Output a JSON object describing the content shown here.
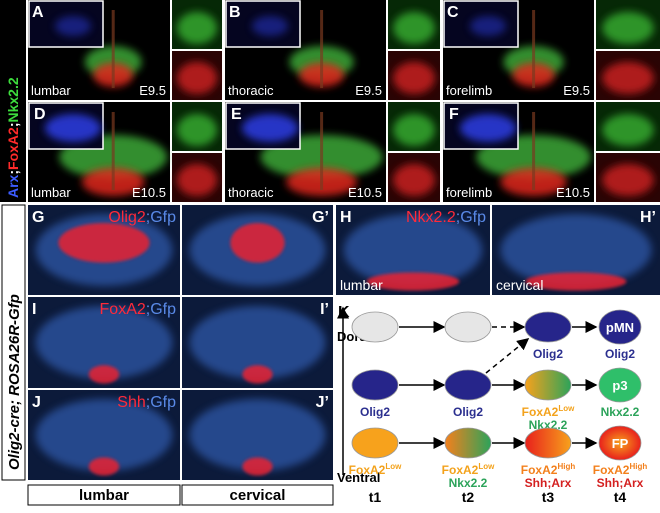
{
  "top_label": [
    {
      "text": "Arx",
      "color": "#3d5cff"
    },
    {
      "text": ";",
      "color": "#ffffff"
    },
    {
      "text": "FoxA2",
      "color": "#ff2a2a"
    },
    {
      "text": ";",
      "color": "#ffffff"
    },
    {
      "text": "Nkx2.2",
      "color": "#3ddc3d"
    }
  ],
  "top_panels": [
    {
      "letter": "A",
      "region": "lumbar",
      "stage": "E9.5"
    },
    {
      "letter": "B",
      "region": "thoracic",
      "stage": "E9.5"
    },
    {
      "letter": "C",
      "region": "forelimb",
      "stage": "E9.5"
    },
    {
      "letter": "D",
      "region": "lumbar",
      "stage": "E10.5"
    },
    {
      "letter": "E",
      "region": "thoracic",
      "stage": "E10.5"
    },
    {
      "letter": "F",
      "region": "forelimb",
      "stage": "E10.5"
    }
  ],
  "side_label": "Olig2-cre; ROSA26R-Gfp",
  "lower_panels": [
    {
      "letter": "G",
      "prime": "G’",
      "marker": "Olig2",
      "reporter": ";Gfp"
    },
    {
      "letter": "H",
      "prime": "H’",
      "marker": "Nkx2.2",
      "reporter": ";Gfp",
      "regions": [
        "lumbar",
        "cervical"
      ]
    },
    {
      "letter": "I",
      "prime": "I’",
      "marker": "FoxA2",
      "reporter": ";Gfp"
    },
    {
      "letter": "J",
      "prime": "J’",
      "marker": "Shh",
      "reporter": ";Gfp"
    }
  ],
  "bottom_labels": [
    "lumbar",
    "cervical"
  ],
  "diagram": {
    "letter": "K",
    "dorsal": "Dorsal",
    "ventral": "Ventral",
    "times": [
      "t1",
      "t2",
      "t3",
      "t4"
    ],
    "rows": [
      [
        {},
        {},
        {
          "caption": [
            {
              "text": "Olig2",
              "color": "#2b2f8f"
            }
          ]
        },
        {
          "text": "pMN",
          "caption": [
            {
              "text": "Olig2",
              "color": "#2b2f8f"
            }
          ]
        }
      ],
      [
        {
          "caption": [
            {
              "text": "Olig2",
              "color": "#2b2f8f"
            }
          ]
        },
        {
          "caption": [
            {
              "text": "Olig2",
              "color": "#2b2f8f"
            }
          ]
        },
        {
          "caption": [
            {
              "text": "FoxA2",
              "sup": "Low",
              "color": "#f3a21c"
            },
            {
              "text": "Nkx2.2",
              "color": "#2ca35a"
            }
          ]
        },
        {
          "text": "p3",
          "caption": [
            {
              "text": "Nkx2.2",
              "color": "#2ca35a"
            }
          ]
        }
      ],
      [
        {
          "caption": [
            {
              "text": "FoxA2",
              "sup": "Low",
              "color": "#f3a21c"
            }
          ]
        },
        {
          "caption": [
            {
              "text": "FoxA2",
              "sup": "Low",
              "color": "#f3a21c"
            },
            {
              "text": "Nkx2.2",
              "color": "#2ca35a"
            }
          ]
        },
        {
          "caption": [
            {
              "text": "FoxA2",
              "sup": "High",
              "color": "#f3801c"
            },
            {
              "text": "Shh;Arx",
              "color": "#d42020"
            }
          ]
        },
        {
          "text": "FP",
          "caption": [
            {
              "text": "FoxA2",
              "sup": "High",
              "color": "#f3801c"
            },
            {
              "text": "Shh;Arx",
              "color": "#d42020"
            }
          ]
        }
      ]
    ]
  }
}
